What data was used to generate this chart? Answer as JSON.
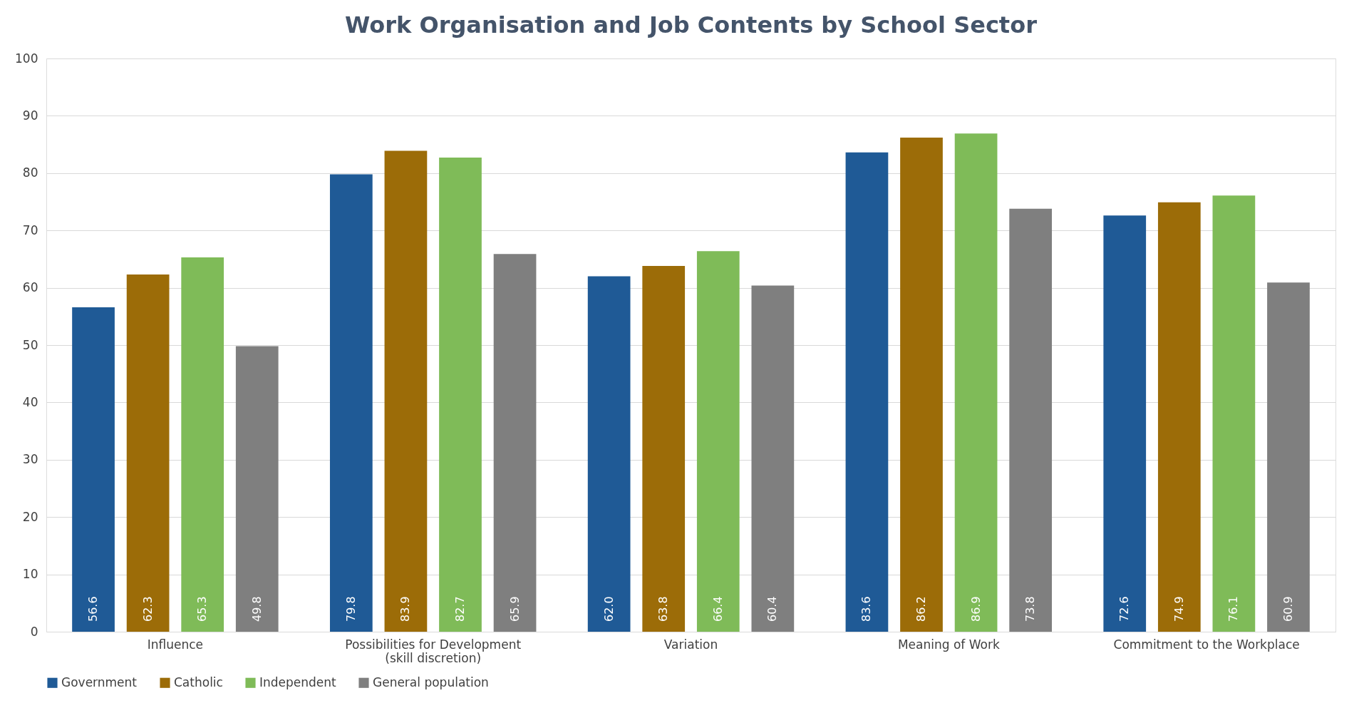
{
  "chart_data": {
    "type": "bar",
    "title": "Work Organisation and Job Contents by School Sector",
    "categories": [
      "Influence",
      "Possibilities for Development (skill discretion)",
      "Variation",
      "Meaning of Work",
      "Commitment to the Workplace"
    ],
    "series": [
      {
        "name": "Government",
        "color": "#1f5a96",
        "values": [
          56.6,
          79.8,
          62.0,
          83.6,
          72.6
        ],
        "value_labels": [
          "56.6",
          "79.8",
          "62.0",
          "83.6",
          "72.6"
        ]
      },
      {
        "name": "Catholic",
        "color": "#9c6c08",
        "values": [
          62.3,
          83.9,
          63.8,
          86.2,
          74.9
        ],
        "value_labels": [
          "62.3",
          "83.9",
          "63.8",
          "86.2",
          "74.9"
        ]
      },
      {
        "name": "Independent",
        "color": "#7fbb58",
        "values": [
          65.3,
          82.7,
          66.4,
          86.9,
          76.1
        ],
        "value_labels": [
          "65.3",
          "82.7",
          "66.4",
          "86.9",
          "76.1"
        ]
      },
      {
        "name": "General population",
        "color": "#7f7f7f",
        "values": [
          49.8,
          65.9,
          60.4,
          73.8,
          60.9
        ],
        "value_labels": [
          "49.8",
          "65.9",
          "60.4",
          "73.8",
          "60.9"
        ]
      }
    ],
    "ylim": [
      0,
      100
    ],
    "yticks": [
      0,
      10,
      20,
      30,
      40,
      50,
      60,
      70,
      80,
      90,
      100
    ],
    "grid": "y",
    "legend": "bottom"
  }
}
